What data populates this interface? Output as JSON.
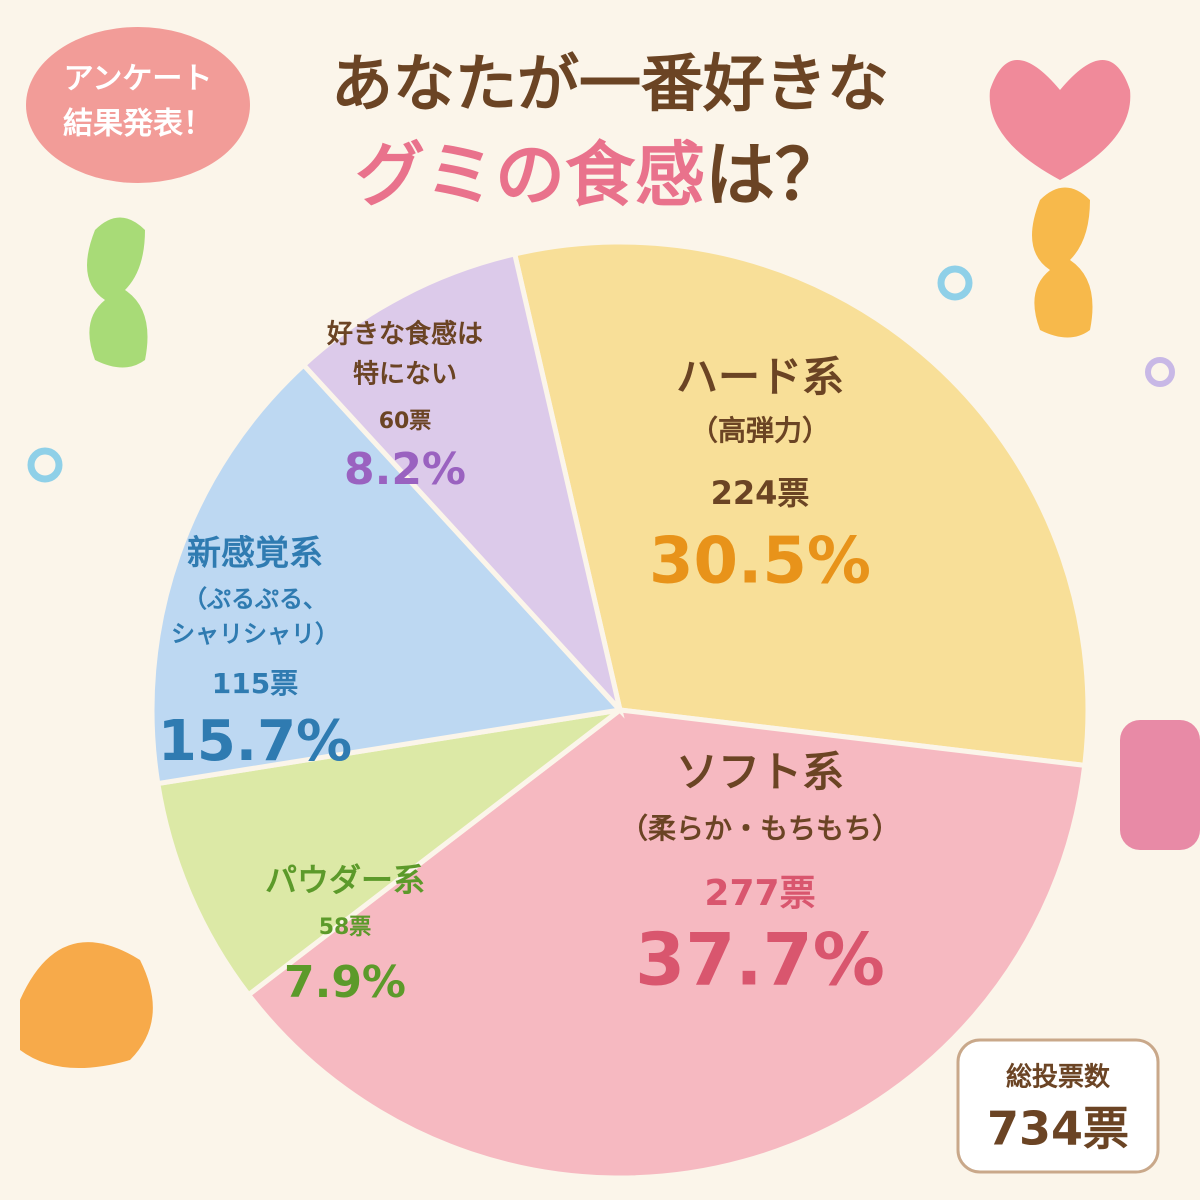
{
  "badge": [
    "アンケート",
    "結果発表！"
  ],
  "chart_data": {
    "type": "pie",
    "title": "あなたが一番好きな",
    "title_highlight": "グミの食感",
    "title_end": "は？",
    "categories": [
      [
        "ハード系",
        "（高弾力）"
      ],
      [
        "ソフト系",
        "（柔らか・もちもち）"
      ],
      [
        "パウダー系"
      ],
      [
        "新感覚系",
        "（ぷるぷる、",
        "シャリシャリ）"
      ],
      [
        "好きな食感は",
        "特にない"
      ]
    ],
    "values": [
      30.5,
      37.7,
      7.9,
      15.7,
      8.2
    ],
    "value_labels": [
      "30.5%",
      "37.7%",
      "7.9%",
      "15.7%",
      "8.2%"
    ],
    "vote_labels": [
      "224票",
      "277票",
      "58票",
      "115票",
      "60票"
    ],
    "colors": [
      "#f8df98",
      "#f6b9c1",
      "#dce9a6",
      "#bdd8f2",
      "#dccaea"
    ],
    "text_colors": [
      "#e8931a",
      "#d9566e",
      "#5c9a2a",
      "#2f7bb1",
      "#9a62c0"
    ]
  },
  "total": {
    "label": "総投票数",
    "value": "734票"
  }
}
